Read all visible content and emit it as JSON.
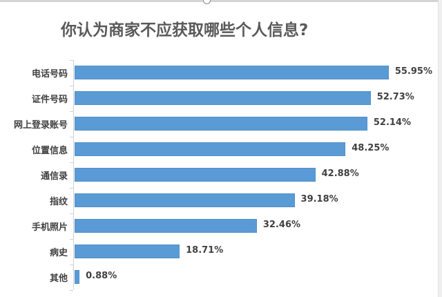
{
  "title": "你认为商家不应获取哪些个人信息?",
  "colors": {
    "bar": "#5b9bd5",
    "text": "#404040",
    "title": "#595959",
    "axis": "#d0d0d0"
  },
  "rows": [
    {
      "label": "电话号码",
      "value": "55.95%"
    },
    {
      "label": "证件号码",
      "value": "52.73%"
    },
    {
      "label": "网上登录账号",
      "value": "52.14%"
    },
    {
      "label": "位置信息",
      "value": "48.25%"
    },
    {
      "label": "通信录",
      "value": "42.88%"
    },
    {
      "label": "指纹",
      "value": "39.18%"
    },
    {
      "label": "手机照片",
      "value": "32.46%"
    },
    {
      "label": "病史",
      "value": "18.71%"
    },
    {
      "label": "其他",
      "value": "0.88%"
    }
  ],
  "chart_data": {
    "type": "bar",
    "orientation": "horizontal",
    "title": "你认为商家不应获取哪些个人信息?",
    "categories": [
      "电话号码",
      "证件号码",
      "网上登录账号",
      "位置信息",
      "通信录",
      "指纹",
      "手机照片",
      "病史",
      "其他"
    ],
    "values": [
      55.95,
      52.73,
      52.14,
      48.25,
      42.88,
      39.18,
      32.46,
      18.71,
      0.88
    ],
    "value_format": "percent",
    "xlabel": "",
    "ylabel": "",
    "xlim": [
      0,
      60
    ],
    "grid": false,
    "legend": false,
    "data_labels": true
  }
}
